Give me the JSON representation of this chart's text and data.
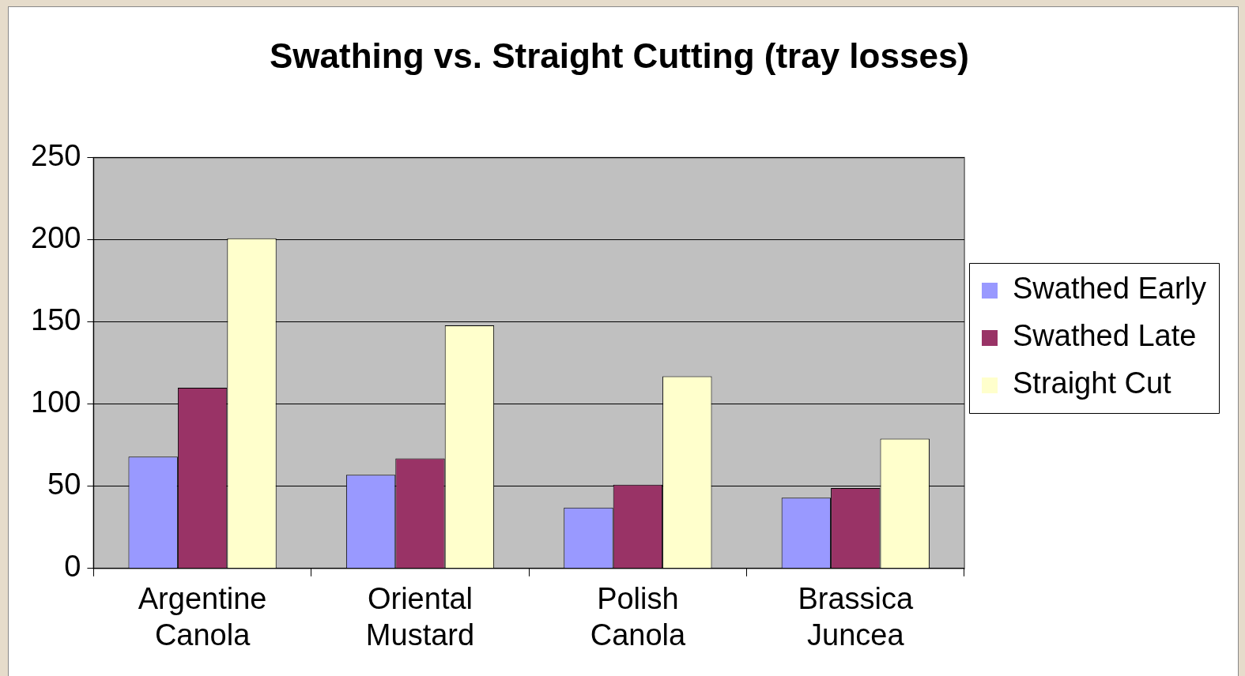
{
  "chart_data": {
    "type": "bar",
    "title": "Swathing vs. Straight Cutting (tray losses)",
    "categories": [
      "Argentine Canola",
      "Oriental Mustard",
      "Polish Canola",
      "Brassica Juncea"
    ],
    "series": [
      {
        "name": "Swathed Early",
        "color": "#9999ff",
        "values": [
          68,
          57,
          37,
          43
        ]
      },
      {
        "name": "Swathed Late",
        "color": "#993366",
        "values": [
          110,
          67,
          51,
          49
        ]
      },
      {
        "name": "Straight Cut",
        "color": "#ffffcc",
        "values": [
          201,
          148,
          117,
          79
        ]
      }
    ],
    "ylim": [
      0,
      250
    ],
    "yticks": [
      0,
      50,
      100,
      150,
      200,
      250
    ],
    "grid": "y",
    "legend": "right"
  }
}
